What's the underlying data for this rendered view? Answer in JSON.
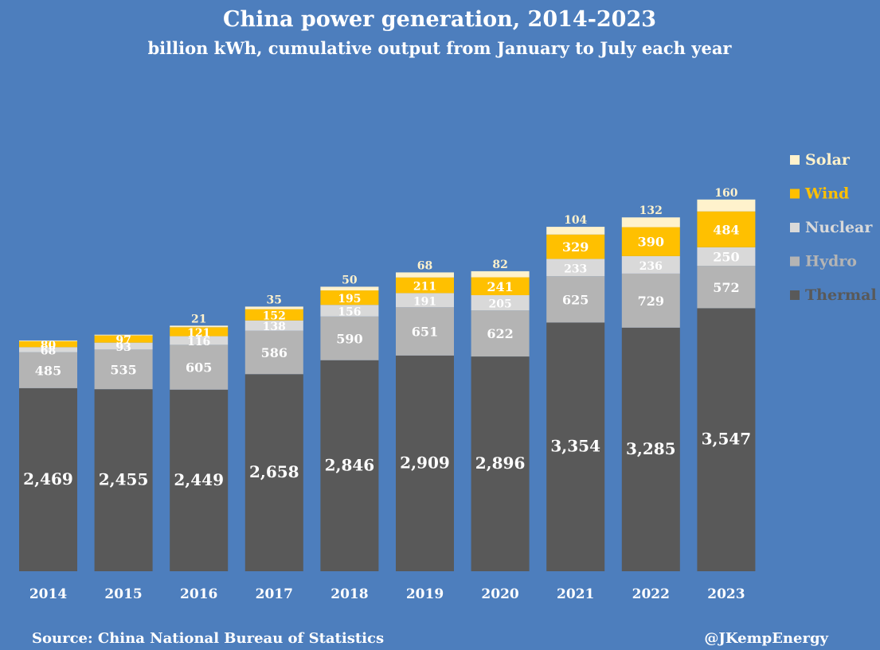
{
  "chart_data": {
    "type": "bar",
    "stacked": true,
    "title": "China power generation, 2014-2023",
    "subtitle": "billion kWh, cumulative output from January to July each year",
    "xlabel": "",
    "ylabel": "",
    "categories": [
      "2014",
      "2015",
      "2016",
      "2017",
      "2018",
      "2019",
      "2020",
      "2021",
      "2022",
      "2023"
    ],
    "series": [
      {
        "name": "Thermal",
        "color": "#595959",
        "label_color": "#ffffff",
        "values": [
          2469,
          2455,
          2449,
          2658,
          2846,
          2909,
          2896,
          3354,
          3285,
          3547
        ],
        "labels": [
          "2,469",
          "2,455",
          "2,449",
          "2,658",
          "2,846",
          "2,909",
          "2,896",
          "3,354",
          "3,285",
          "3,547"
        ]
      },
      {
        "name": "Hydro",
        "color": "#b4b4b4",
        "label_color": "#ffffff",
        "values": [
          485,
          535,
          605,
          586,
          590,
          651,
          622,
          625,
          729,
          572
        ],
        "labels": [
          "485",
          "535",
          "605",
          "586",
          "590",
          "651",
          "622",
          "625",
          "729",
          "572"
        ]
      },
      {
        "name": "Nuclear",
        "color": "#d9d9d9",
        "label_color": "#ffffff",
        "values": [
          68,
          93,
          116,
          138,
          156,
          191,
          205,
          233,
          236,
          250
        ],
        "labels": [
          "68",
          "93",
          "116",
          "138",
          "156",
          "191",
          "205",
          "233",
          "236",
          "250"
        ]
      },
      {
        "name": "Wind",
        "color": "#ffc000",
        "label_color": "#ffffff",
        "values": [
          80,
          97,
          121,
          152,
          195,
          211,
          241,
          329,
          390,
          484
        ],
        "labels": [
          "80",
          "97",
          "121",
          "152",
          "195",
          "211",
          "241",
          "329",
          "390",
          "484"
        ]
      },
      {
        "name": "Solar",
        "color": "#fff2cc",
        "label_color": "#fff2cc",
        "values": [
          10,
          10,
          21,
          35,
          50,
          68,
          82,
          104,
          132,
          160
        ],
        "labels": [
          "",
          "",
          "21",
          "35",
          "50",
          "68",
          "82",
          "104",
          "132",
          "160"
        ]
      }
    ],
    "legend_position": "right",
    "grid": false,
    "footer_left": "Source: China National Bureau of Statistics",
    "footer_right": "@JKempEnergy"
  }
}
